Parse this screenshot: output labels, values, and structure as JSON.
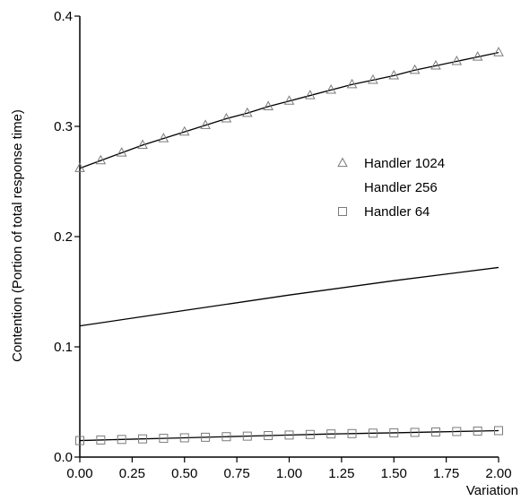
{
  "chart_data": {
    "type": "line",
    "xlabel": "Variation",
    "ylabel": "Contention (Portion of total response time)",
    "xlim": [
      0,
      2
    ],
    "ylim": [
      0,
      0.4
    ],
    "xticks": [
      "0.00",
      "0.25",
      "0.50",
      "0.75",
      "1.00",
      "1.25",
      "1.50",
      "1.75",
      "2.00"
    ],
    "yticks": [
      "0.0",
      "0.1",
      "0.2",
      "0.3",
      "0.4"
    ],
    "grid": false,
    "legend_position": "right-middle",
    "series": [
      {
        "name": "Handler 1024",
        "marker": "triangle",
        "x": [
          0.0,
          0.1,
          0.2,
          0.3,
          0.4,
          0.5,
          0.6,
          0.7,
          0.8,
          0.9,
          1.0,
          1.1,
          1.2,
          1.3,
          1.4,
          1.5,
          1.6,
          1.7,
          1.8,
          1.9,
          2.0
        ],
        "y": [
          0.262,
          0.269,
          0.276,
          0.283,
          0.289,
          0.295,
          0.301,
          0.307,
          0.312,
          0.318,
          0.323,
          0.328,
          0.333,
          0.338,
          0.342,
          0.346,
          0.351,
          0.355,
          0.359,
          0.363,
          0.367
        ]
      },
      {
        "name": "Handler 256",
        "marker": "none",
        "x": [
          0.0,
          0.5,
          1.0,
          1.5,
          2.0
        ],
        "y": [
          0.119,
          0.133,
          0.147,
          0.16,
          0.172
        ]
      },
      {
        "name": "Handler 64",
        "marker": "square",
        "x": [
          0.0,
          0.1,
          0.2,
          0.3,
          0.4,
          0.5,
          0.6,
          0.7,
          0.8,
          0.9,
          1.0,
          1.1,
          1.2,
          1.3,
          1.4,
          1.5,
          1.6,
          1.7,
          1.8,
          1.9,
          2.0
        ],
        "y": [
          0.015,
          0.0155,
          0.016,
          0.0165,
          0.017,
          0.0175,
          0.018,
          0.0185,
          0.019,
          0.0195,
          0.02,
          0.0205,
          0.021,
          0.0213,
          0.0217,
          0.022,
          0.0224,
          0.0228,
          0.0232,
          0.0236,
          0.024
        ]
      }
    ]
  }
}
